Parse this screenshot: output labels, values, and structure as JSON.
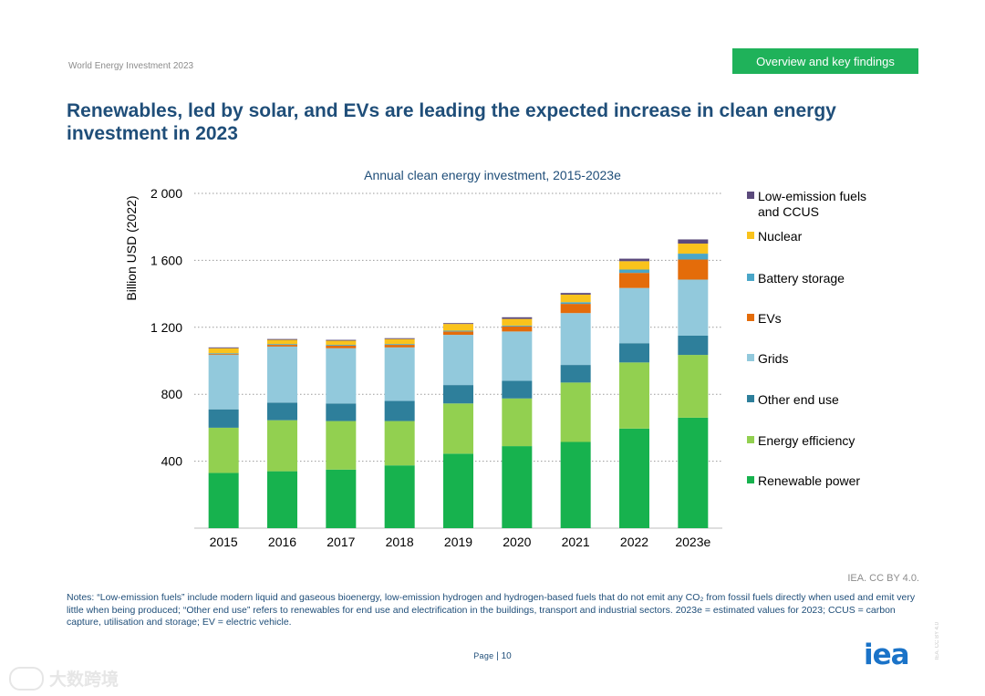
{
  "header": {
    "report_name": "World Energy Investment 2023",
    "section_tag": "Overview and key findings"
  },
  "page_title": "Renewables, led by solar, and EVs are leading the expected increase in clean energy investment in 2023",
  "chart_data": {
    "type": "bar",
    "stacked": true,
    "title": "Annual clean energy investment, 2015-2023e",
    "ylabel": "Billion USD (2022)",
    "xlabel": "",
    "ylim": [
      0,
      2000
    ],
    "yticks": [
      400,
      800,
      1200,
      1600,
      2000
    ],
    "ytick_labels": [
      "400",
      "800",
      "1 200",
      "1 600",
      "2 000"
    ],
    "grid": true,
    "legend_position": "right",
    "categories": [
      "2015",
      "2016",
      "2017",
      "2018",
      "2019",
      "2020",
      "2021",
      "2022",
      "2023e"
    ],
    "series": [
      {
        "name": "Renewable power",
        "color": "#17b24e",
        "values": [
          330,
          340,
          350,
          375,
          445,
          490,
          515,
          595,
          660
        ]
      },
      {
        "name": "Energy efficiency",
        "color": "#92d050",
        "values": [
          270,
          305,
          290,
          265,
          300,
          285,
          355,
          395,
          375
        ]
      },
      {
        "name": "Other end use",
        "color": "#2e7f9b",
        "values": [
          110,
          105,
          105,
          120,
          110,
          105,
          105,
          115,
          115
        ]
      },
      {
        "name": "Grids",
        "color": "#92c9dc",
        "values": [
          325,
          335,
          330,
          320,
          300,
          295,
          310,
          330,
          335
        ]
      },
      {
        "name": "EVs",
        "color": "#e46c0a",
        "values": [
          5,
          10,
          15,
          15,
          20,
          30,
          55,
          90,
          120
        ]
      },
      {
        "name": "Battery storage",
        "color": "#4aa6c8",
        "values": [
          5,
          5,
          5,
          5,
          5,
          5,
          10,
          20,
          35
        ]
      },
      {
        "name": "Nuclear",
        "color": "#fac31c",
        "values": [
          30,
          25,
          25,
          30,
          40,
          40,
          45,
          50,
          60
        ]
      },
      {
        "name": "Low-emission fuels and CCUS",
        "color": "#5b4a7c",
        "values": [
          5,
          5,
          5,
          5,
          5,
          10,
          10,
          15,
          25
        ]
      }
    ]
  },
  "legend_labels": {
    "low_emission": [
      "Low-emission fuels",
      "and CCUS"
    ]
  },
  "source": "IEA. CC BY 4.0.",
  "notes": "Notes: “Low-emission fuels” include modern liquid and gaseous bioenergy, low-emission hydrogen and hydrogen-based fuels that do not emit any CO₂ from fossil fuels directly when used and emit very little when being produced; “Other end use” refers to renewables for end use and electrification in the buildings, transport and industrial sectors. 2023e = estimated values for 2023; CCUS = carbon capture, utilisation and storage; EV = electric vehicle.",
  "footer": {
    "page_word": "Page",
    "page_number": "10",
    "logo_text": "iea",
    "license_vertical": "IEA. CC BY 4.0",
    "watermark": "大数跨境"
  }
}
